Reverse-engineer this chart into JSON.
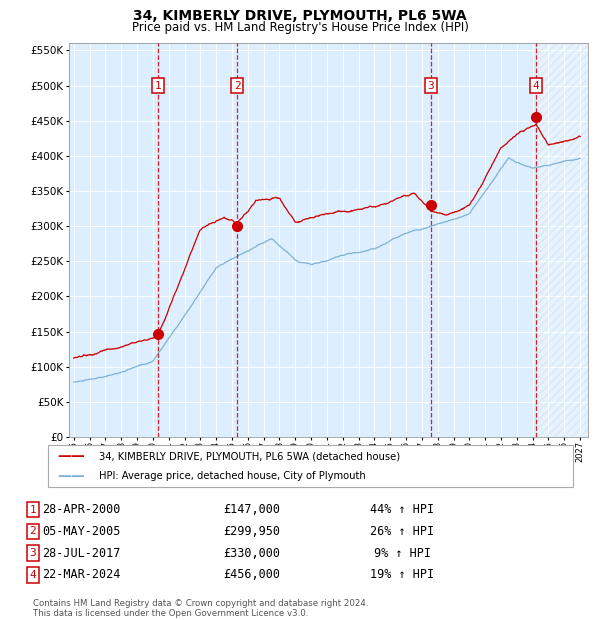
{
  "title": "34, KIMBERLY DRIVE, PLYMOUTH, PL6 5WA",
  "subtitle": "Price paid vs. HM Land Registry's House Price Index (HPI)",
  "ylim": [
    0,
    560000
  ],
  "yticks": [
    0,
    50000,
    100000,
    150000,
    200000,
    250000,
    300000,
    350000,
    400000,
    450000,
    500000,
    550000
  ],
  "xlim_start": 1994.7,
  "xlim_end": 2027.5,
  "sale_color": "#cc0000",
  "hpi_color": "#7bafd4",
  "background_color": "#ddeeff",
  "grid_color": "#ffffff",
  "sale_label": "34, KIMBERLY DRIVE, PLYMOUTH, PL6 5WA (detached house)",
  "hpi_label": "HPI: Average price, detached house, City of Plymouth",
  "purchases": [
    {
      "num": 1,
      "date_year": 2000.33,
      "price": 147000,
      "date_str": "28-APR-2000",
      "pct": "44%",
      "dir": "↑"
    },
    {
      "num": 2,
      "date_year": 2005.33,
      "price": 299950,
      "date_str": "05-MAY-2005",
      "pct": "26%",
      "dir": "↑"
    },
    {
      "num": 3,
      "date_year": 2017.58,
      "price": 330000,
      "date_str": "28-JUL-2017",
      "pct": "9%",
      "dir": "↑"
    },
    {
      "num": 4,
      "date_year": 2024.22,
      "price": 456000,
      "date_str": "22-MAR-2024",
      "pct": "19%",
      "dir": "↑"
    }
  ],
  "footer": "Contains HM Land Registry data © Crown copyright and database right 2024.\nThis data is licensed under the Open Government Licence v3.0.",
  "title_fontsize": 10,
  "subtitle_fontsize": 8.5
}
